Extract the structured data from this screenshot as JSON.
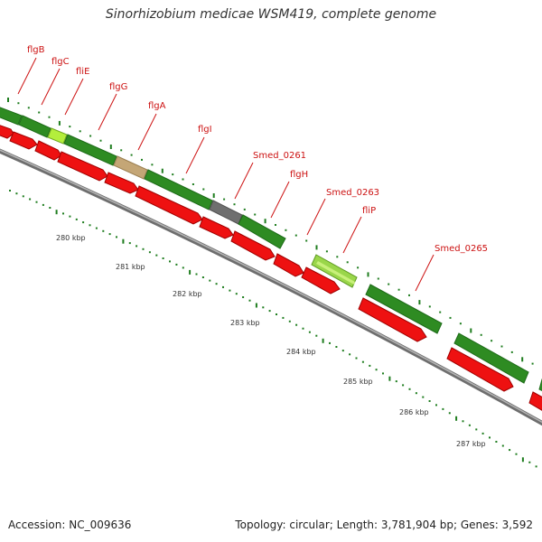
{
  "title": "Sinorhizobium medicae WSM419, complete genome",
  "accession": "Accession: NC_009636",
  "summary": "Topology: circular; Length: 3,781,904 bp; Genes: 3,592",
  "colors": {
    "label": "#cc1111",
    "backbone": "#8a8a8a",
    "tick": "#1f7d1f",
    "forward_gene": "#2e8b22",
    "forward_gene_light": "#9ad64a",
    "forward_gene_tan": "#c4a676",
    "forward_gene_gray": "#777777",
    "reverse_gene": "#ee1111"
  },
  "gene_labels": [
    "flgB",
    "flgC",
    "fliE",
    "flgG",
    "flgA",
    "flgI",
    "Smed_0261",
    "flgH",
    "Smed_0263",
    "fliP",
    "Smed_0265"
  ],
  "kbp_labels": [
    "280 kbp",
    "281 kbp",
    "282 kbp",
    "283 kbp",
    "284 kbp",
    "285 kbp",
    "286 kbp",
    "287 kbp"
  ]
}
